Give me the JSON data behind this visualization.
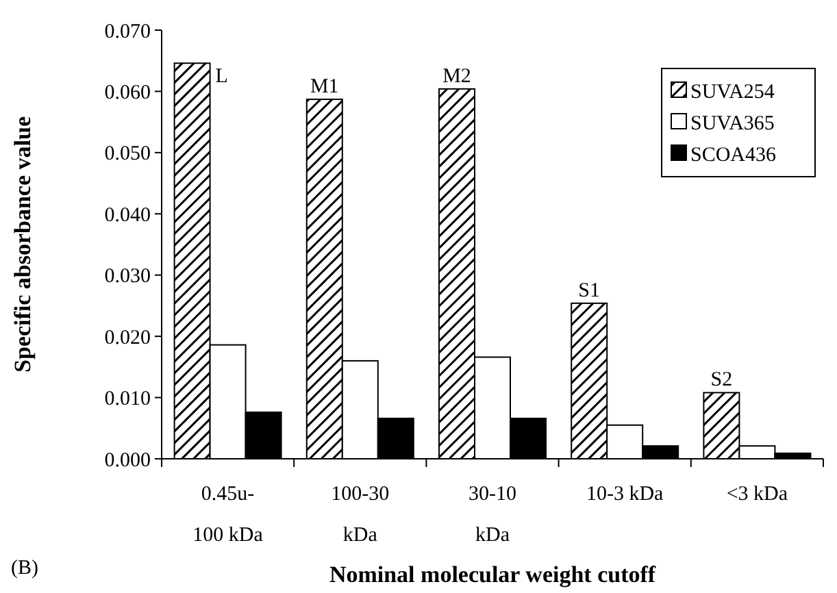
{
  "chart_data": {
    "type": "bar",
    "xlabel": "Nominal molecular weight cutoff",
    "ylabel": "Specific absorbance value",
    "categories": [
      "0.45u-\n100 kDa",
      "100-30\nkDa",
      "30-10\nkDa",
      "10-3 kDa",
      "<3 kDa"
    ],
    "series": [
      {
        "name": "SUVA254",
        "color": "#000000",
        "values": [
          0.0646,
          0.0587,
          0.0604,
          0.0254,
          0.0108
        ]
      },
      {
        "name": "SUVA365",
        "color": "#ffffff",
        "values": [
          0.0186,
          0.016,
          0.0166,
          0.0055,
          0.0021
        ]
      },
      {
        "name": "SCOA436",
        "color": "#000000",
        "values": [
          0.0076,
          0.0066,
          0.0066,
          0.0021,
          0.0009
        ]
      }
    ],
    "ylim": [
      0,
      0.07
    ],
    "yticks": [
      {
        "value": 0,
        "label": "0.000"
      },
      {
        "value": 0.01,
        "label": "0.010"
      },
      {
        "value": 0.02,
        "label": "0.020"
      },
      {
        "value": 0.03,
        "label": "0.030"
      },
      {
        "value": 0.04,
        "label": "0.040"
      },
      {
        "value": 0.05,
        "label": "0.050"
      },
      {
        "value": 0.06,
        "label": "0.060"
      },
      {
        "value": 0.07,
        "label": "0.070"
      }
    ],
    "annotations": [
      "L",
      "M1",
      "M2",
      "S1",
      "S2",
      "(B)"
    ],
    "grid": false,
    "legend": "top right"
  }
}
